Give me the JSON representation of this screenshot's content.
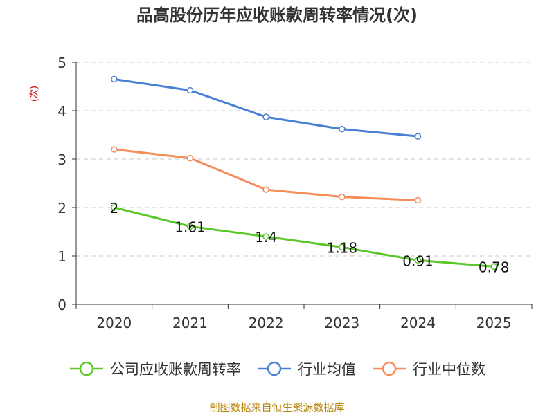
{
  "chart_data": {
    "type": "line",
    "title": "品高股份历年应收账款周转率情况(次)",
    "ylabel": "(次)",
    "xlabel": "",
    "categories": [
      "2020",
      "2021",
      "2022",
      "2023",
      "2024",
      "2025"
    ],
    "ylim": [
      0,
      5
    ],
    "yticks": [
      0,
      1,
      2,
      3,
      4,
      5
    ],
    "grid": true,
    "legend_position": "bottom",
    "series": [
      {
        "name": "公司应收账款周转率",
        "color": "#5cc72c",
        "values": [
          2,
          1.61,
          1.4,
          1.18,
          0.91,
          0.78
        ],
        "labels": [
          "2",
          "1.61",
          "1.4",
          "1.18",
          "0.91",
          "0.78"
        ]
      },
      {
        "name": "行业均值",
        "color": "#4a7fd4",
        "values": [
          4.65,
          4.42,
          3.87,
          3.62,
          3.47,
          null
        ]
      },
      {
        "name": "行业中位数",
        "color": "#f58c5a",
        "values": [
          3.2,
          3.02,
          2.37,
          2.22,
          2.15,
          null
        ]
      }
    ]
  },
  "source_text": "制图数据来自恒生聚源数据库"
}
